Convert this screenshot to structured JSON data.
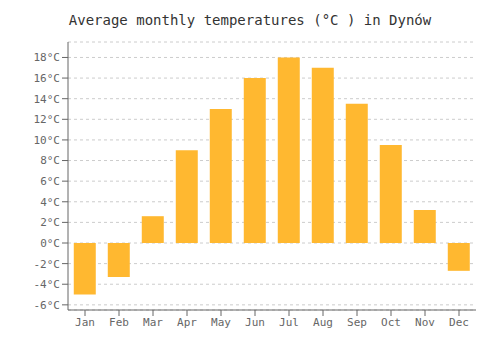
{
  "chart_data": {
    "type": "bar",
    "title": "Average monthly temperatures (°C ) in Dynów",
    "categories": [
      "Jan",
      "Feb",
      "Mar",
      "Apr",
      "May",
      "Jun",
      "Jul",
      "Aug",
      "Sep",
      "Oct",
      "Nov",
      "Dec"
    ],
    "values": [
      -5.0,
      -3.3,
      2.6,
      9.0,
      13.0,
      16.0,
      18.0,
      17.0,
      13.5,
      9.5,
      3.2,
      -2.7
    ],
    "color": "#FFB830",
    "ylim": [
      -6.5,
      19.5
    ],
    "yticks": [
      {
        "value": -6,
        "label": "-6°C"
      },
      {
        "value": -4,
        "label": "-4°C"
      },
      {
        "value": -2,
        "label": "-2°C"
      },
      {
        "value": 0,
        "label": "0°C"
      },
      {
        "value": 2,
        "label": "2°C"
      },
      {
        "value": 4,
        "label": "4°C"
      },
      {
        "value": 6,
        "label": "6°C"
      },
      {
        "value": 8,
        "label": "8°C"
      },
      {
        "value": 10,
        "label": "10°C"
      },
      {
        "value": 12,
        "label": "12°C"
      },
      {
        "value": 14,
        "label": "14°C"
      },
      {
        "value": 16,
        "label": "16°C"
      },
      {
        "value": 18,
        "label": "18°C"
      }
    ],
    "grid": true
  }
}
